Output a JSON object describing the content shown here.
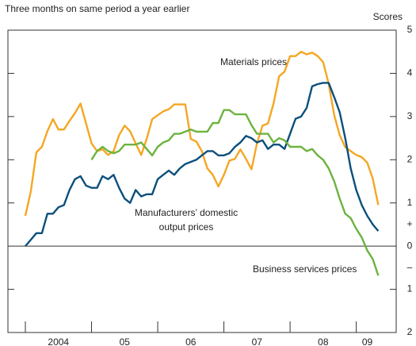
{
  "chart_data": {
    "type": "line",
    "subtitle": "Three months on same period a year earlier",
    "y2_label": "Scores",
    "axis_signs": [
      "+",
      "–"
    ],
    "categories": [
      null,
      null,
      null,
      null,
      null,
      null,
      "2004",
      null,
      null,
      null,
      null,
      null,
      null,
      null,
      null,
      null,
      null,
      null,
      "05",
      null,
      null,
      null,
      null,
      null,
      null,
      null,
      null,
      null,
      null,
      null,
      "06",
      null,
      null,
      null,
      null,
      null,
      null,
      null,
      null,
      null,
      null,
      null,
      "07",
      null,
      null,
      null,
      null,
      null,
      null,
      null,
      null,
      null,
      null,
      null,
      "08",
      null,
      null,
      null,
      null,
      null,
      null,
      null,
      "09",
      null,
      null
    ],
    "ylim": [
      -2,
      5
    ],
    "yticks": [
      5,
      4,
      3,
      2,
      1,
      0,
      {
        "value": -1,
        "label": "1"
      },
      {
        "value": -2,
        "label": "2"
      }
    ],
    "series": [
      {
        "name": "Materials prices",
        "color": "#f5a623",
        "values": [
          0.7,
          1.28,
          2.17,
          2.3,
          2.66,
          2.94,
          2.7,
          2.7,
          2.9,
          3.08,
          3.3,
          2.84,
          2.38,
          2.2,
          2.24,
          2.11,
          2.2,
          2.57,
          2.79,
          2.66,
          2.38,
          2.11,
          2.48,
          2.94,
          3.03,
          3.12,
          3.17,
          3.28,
          3.28,
          3.28,
          2.48,
          2.42,
          2.2,
          1.8,
          1.65,
          1.38,
          1.65,
          1.98,
          2.02,
          2.24,
          2.02,
          1.78,
          2.38,
          2.79,
          2.84,
          3.3,
          3.93,
          4.04,
          4.4,
          4.4,
          4.5,
          4.44,
          4.48,
          4.4,
          4.26,
          3.76,
          3.03,
          2.57,
          2.29,
          2.2,
          2.11,
          2.06,
          1.93,
          1.56,
          0.95
        ]
      },
      {
        "name": "Manufacturers’ domestic output prices",
        "color": "#0b4f7c",
        "values": [
          0.0,
          0.15,
          0.3,
          0.3,
          0.75,
          0.75,
          0.9,
          0.95,
          1.3,
          1.55,
          1.62,
          1.4,
          1.35,
          1.35,
          1.62,
          1.55,
          1.65,
          1.35,
          1.1,
          1.0,
          1.3,
          1.15,
          1.2,
          1.2,
          1.55,
          1.65,
          1.75,
          1.65,
          1.8,
          1.9,
          1.95,
          2.0,
          2.1,
          2.2,
          2.2,
          2.1,
          2.1,
          2.15,
          2.3,
          2.4,
          2.55,
          2.5,
          2.4,
          2.45,
          2.25,
          2.35,
          2.35,
          2.25,
          2.6,
          2.95,
          3.0,
          3.2,
          3.7,
          3.75,
          3.78,
          3.78,
          3.45,
          3.1,
          2.5,
          1.8,
          1.3,
          0.95,
          0.7,
          0.5,
          0.35
        ]
      },
      {
        "name": "Business services prices",
        "color": "#6cb33f",
        "values": [
          null,
          null,
          null,
          null,
          null,
          null,
          null,
          null,
          null,
          null,
          null,
          null,
          2.0,
          2.2,
          2.3,
          2.2,
          2.15,
          2.2,
          2.35,
          2.35,
          2.35,
          2.4,
          2.25,
          2.1,
          2.3,
          2.4,
          2.45,
          2.6,
          2.6,
          2.65,
          2.7,
          2.65,
          2.65,
          2.65,
          2.85,
          2.85,
          3.15,
          3.15,
          3.05,
          3.05,
          3.05,
          2.8,
          2.6,
          2.6,
          2.6,
          2.4,
          2.5,
          2.45,
          2.3,
          2.3,
          2.3,
          2.2,
          2.25,
          2.1,
          2.0,
          1.8,
          1.5,
          1.1,
          0.75,
          0.65,
          0.4,
          0.2,
          -0.1,
          -0.3,
          -0.68
        ]
      }
    ]
  }
}
